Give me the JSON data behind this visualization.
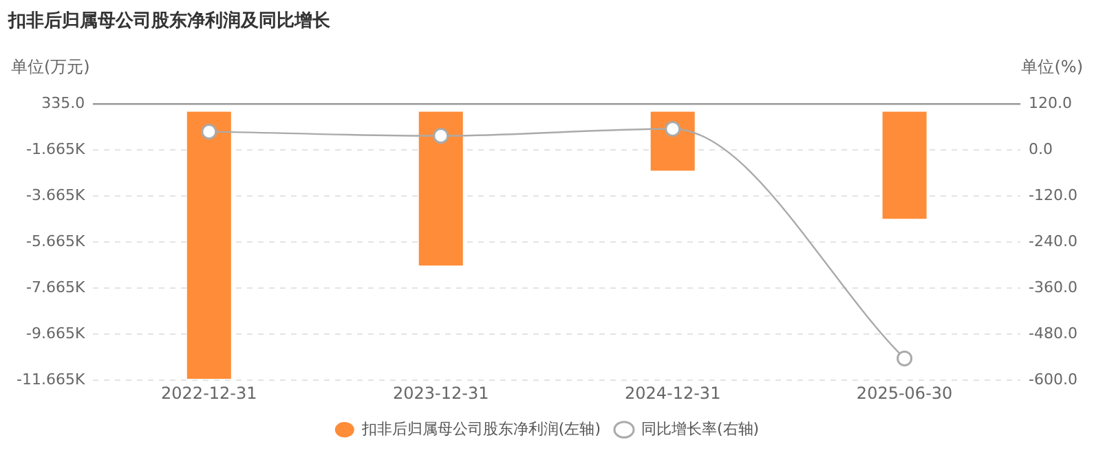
{
  "chart_data": {
    "type": "bar",
    "title": "扣非后归属母公司股东净利润及同比增长",
    "ylabel": "单位(万元)",
    "y2label": "单位(%)",
    "categories": [
      "2022-12-31",
      "2023-12-31",
      "2024-12-31",
      "2025-06-30"
    ],
    "series": [
      {
        "name": "扣非后归属母公司股东净利润(左轴)",
        "color": "#ff8c38",
        "values": [
          -11600,
          -6680,
          -2560,
          -4650
        ]
      },
      {
        "name": "同比增长率(右轴)",
        "type": "line",
        "axis": "y2",
        "color": "#aaaaaa",
        "marker": "circle",
        "values": [
          48,
          37,
          55,
          -543
        ]
      }
    ],
    "ylim": [
      -11665,
      335
    ],
    "yticks": [
      {
        "value": 335,
        "label": "335.0"
      },
      {
        "value": -1665,
        "label": "-1.665K"
      },
      {
        "value": -3665,
        "label": "-3.665K"
      },
      {
        "value": -5665,
        "label": "-5.665K"
      },
      {
        "value": -7665,
        "label": "-7.665K"
      },
      {
        "value": -9665,
        "label": "-9.665K"
      },
      {
        "value": -11665,
        "label": "-11.665K"
      }
    ],
    "y2lim": [
      -600,
      120
    ],
    "y2ticks": [
      {
        "value": 120,
        "label": "120.0"
      },
      {
        "value": 0,
        "label": "0.0"
      },
      {
        "value": -120,
        "label": "-120.0"
      },
      {
        "value": -240,
        "label": "-240.0"
      },
      {
        "value": -360,
        "label": "-360.0"
      },
      {
        "value": -480,
        "label": "-480.0"
      },
      {
        "value": -600,
        "label": "-600.0"
      }
    ],
    "grid": "y",
    "legend": "bottom"
  }
}
